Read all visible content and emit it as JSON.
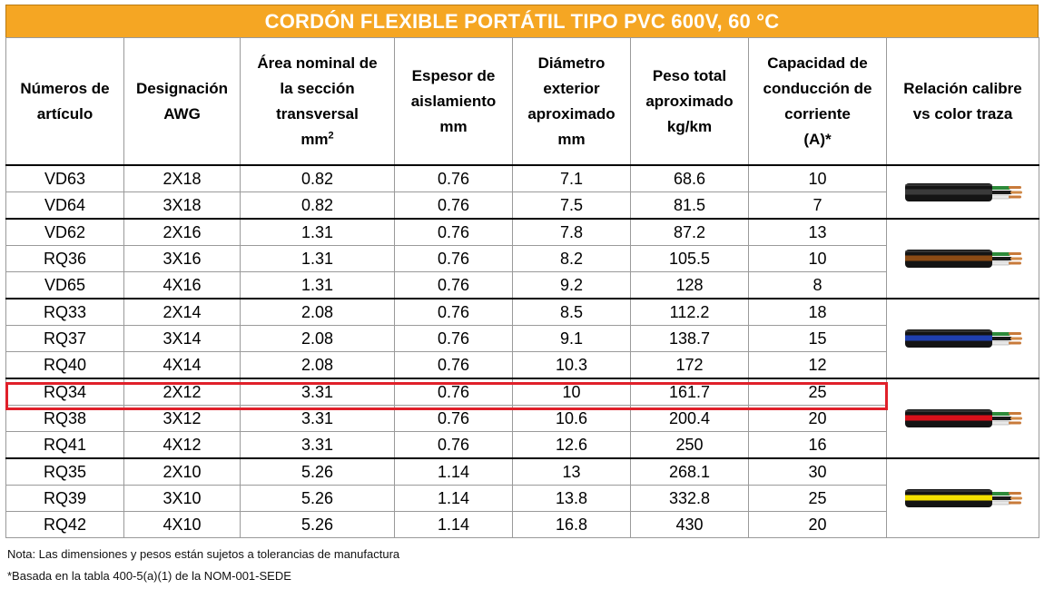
{
  "title": "CORDÓN FLEXIBLE PORTÁTIL TIPO PVC 600V, 60 °C",
  "headers": {
    "item_numbers": [
      "Números de",
      "artículo"
    ],
    "awg": [
      "Designación",
      "AWG"
    ],
    "area": [
      "Área nominal de",
      "la sección",
      "transversal",
      "mm",
      "2"
    ],
    "insulation": [
      "Espesor de",
      "aislamiento",
      "mm"
    ],
    "diameter": [
      "Diámetro",
      "exterior",
      "aproximado",
      "mm"
    ],
    "weight": [
      "Peso total",
      "aproximado",
      "kg/km"
    ],
    "capacity": [
      "Capacidad de",
      "conducción de",
      "corriente",
      "(A)*"
    ],
    "color_rel": [
      "Relación calibre",
      "vs color traza"
    ]
  },
  "rows": [
    {
      "item": "VD63",
      "awg": "2X18",
      "area": "0.82",
      "ins": "0.76",
      "dia": "7.1",
      "weight": "68.6",
      "amp": "10"
    },
    {
      "item": "VD64",
      "awg": "3X18",
      "area": "0.82",
      "ins": "0.76",
      "dia": "7.5",
      "weight": "81.5",
      "amp": "7"
    },
    {
      "item": "VD62",
      "awg": "2X16",
      "area": "1.31",
      "ins": "0.76",
      "dia": "7.8",
      "weight": "87.2",
      "amp": "13"
    },
    {
      "item": "RQ36",
      "awg": "3X16",
      "area": "1.31",
      "ins": "0.76",
      "dia": "8.2",
      "weight": "105.5",
      "amp": "10"
    },
    {
      "item": "VD65",
      "awg": "4X16",
      "area": "1.31",
      "ins": "0.76",
      "dia": "9.2",
      "weight": "128",
      "amp": "8"
    },
    {
      "item": "RQ33",
      "awg": "2X14",
      "area": "2.08",
      "ins": "0.76",
      "dia": "8.5",
      "weight": "112.2",
      "amp": "18"
    },
    {
      "item": "RQ37",
      "awg": "3X14",
      "area": "2.08",
      "ins": "0.76",
      "dia": "9.1",
      "weight": "138.7",
      "amp": "15"
    },
    {
      "item": "RQ40",
      "awg": "4X14",
      "area": "2.08",
      "ins": "0.76",
      "dia": "10.3",
      "weight": "172",
      "amp": "12"
    },
    {
      "item": "RQ34",
      "awg": "2X12",
      "area": "3.31",
      "ins": "0.76",
      "dia": "10",
      "weight": "161.7",
      "amp": "25"
    },
    {
      "item": "RQ38",
      "awg": "3X12",
      "area": "3.31",
      "ins": "0.76",
      "dia": "10.6",
      "weight": "200.4",
      "amp": "20"
    },
    {
      "item": "RQ41",
      "awg": "4X12",
      "area": "3.31",
      "ins": "0.76",
      "dia": "12.6",
      "weight": "250",
      "amp": "16"
    },
    {
      "item": "RQ35",
      "awg": "2X10",
      "area": "5.26",
      "ins": "1.14",
      "dia": "13",
      "weight": "268.1",
      "amp": "30"
    },
    {
      "item": "RQ39",
      "awg": "3X10",
      "area": "5.26",
      "ins": "1.14",
      "dia": "13.8",
      "weight": "332.8",
      "amp": "25"
    },
    {
      "item": "RQ42",
      "awg": "4X10",
      "area": "5.26",
      "ins": "1.14",
      "dia": "16.8",
      "weight": "430",
      "amp": "20"
    }
  ],
  "groups": [
    {
      "gauge": "18",
      "stripe_color": "#3a3a3a"
    },
    {
      "gauge": "16",
      "stripe_color": "#8a4a14"
    },
    {
      "gauge": "14",
      "stripe_color": "#1f3fb0"
    },
    {
      "gauge": "12",
      "stripe_color": "#d8101a"
    },
    {
      "gauge": "10",
      "stripe_color": "#f4e000"
    }
  ],
  "highlighted_item": "RQ34",
  "colors": {
    "title_bg": "#f5a623",
    "title_text": "#ffffff",
    "highlight": "#e0202a"
  },
  "notes": [
    "Nota: Las dimensiones y pesos están sujetos a tolerancias de manufactura",
    "*Basada en la tabla 400-5(a)(1) de la NOM-001-SEDE"
  ]
}
